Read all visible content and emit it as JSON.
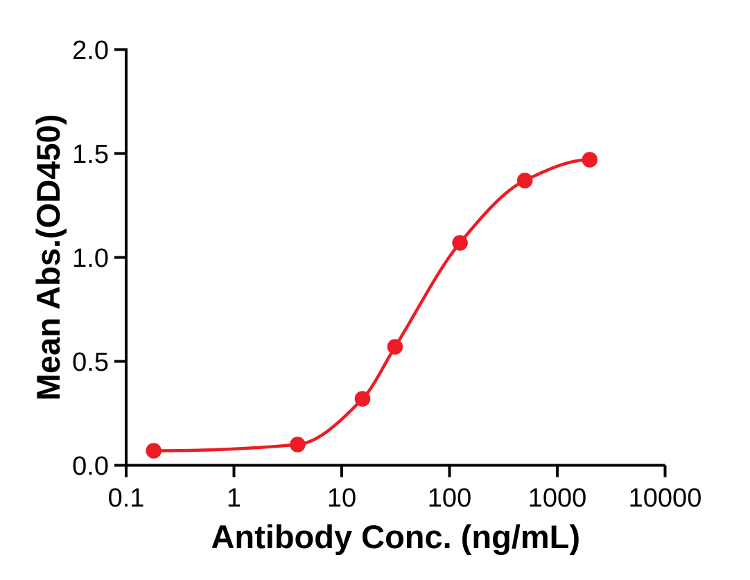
{
  "chart_data": {
    "type": "scatter",
    "subtype": "sigmoidal-dose-response-curve-with-fit",
    "title": "",
    "xlabel": "Antibody Conc. (ng/mL)",
    "ylabel": "Mean Abs.(OD450)",
    "x_scale": "log10",
    "xlim": [
      0.1,
      10000
    ],
    "ylim": [
      0.0,
      2.0
    ],
    "x_ticks": [
      "0.1",
      "1",
      "10",
      "100",
      "1000",
      "10000"
    ],
    "y_ticks": [
      "0.0",
      "0.5",
      "1.0",
      "1.5",
      "2.0"
    ],
    "grid": false,
    "legend": "none",
    "series": [
      {
        "name": "Mean Abs.(OD450)",
        "marker": "circle",
        "x": [
          0.18,
          3.9,
          15.6,
          31.25,
          125,
          500,
          2000
        ],
        "y": [
          0.07,
          0.1,
          0.32,
          0.57,
          1.07,
          1.37,
          1.47
        ]
      }
    ],
    "colors": {
      "curve": "#ED1C24",
      "marker": "#ED1C24",
      "axis": "#000000",
      "background": "#FFFFFF"
    }
  }
}
